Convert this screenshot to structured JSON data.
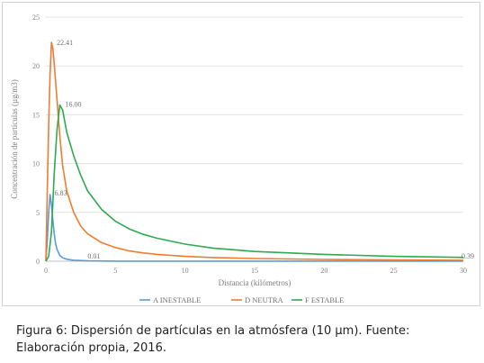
{
  "caption": {
    "line1": "Figura 6: Dispersión de partículas en la atmósfera (10 µm). Fuente:",
    "line2": "Elaboración propia, 2016."
  },
  "chart_data": {
    "type": "line",
    "title": "",
    "xlabel": "Distancia (kilómetros)",
    "ylabel": "Concentración de partículas (µg/m3)",
    "xlim": [
      0,
      30
    ],
    "ylim": [
      0,
      25
    ],
    "x_ticks": [
      "0",
      "5",
      "10",
      "15",
      "20",
      "25",
      "30"
    ],
    "y_ticks": [
      "0",
      "5",
      "10",
      "15",
      "20",
      "25"
    ],
    "grid": "horizontal",
    "legend_position": "bottom",
    "series": [
      {
        "name": "A INESTABLE",
        "color": "#5b9bd5",
        "x": [
          0,
          0.1,
          0.2,
          0.3,
          0.4,
          0.5,
          0.6,
          0.7,
          0.8,
          1.0,
          1.2,
          1.5,
          2,
          3,
          5,
          10,
          15,
          20,
          25,
          30
        ],
        "y": [
          0,
          2.0,
          5.0,
          6.83,
          5.8,
          4.2,
          2.8,
          1.8,
          1.2,
          0.6,
          0.35,
          0.2,
          0.1,
          0.04,
          0.01,
          0.01,
          0.01,
          0.01,
          0.01,
          0.01
        ]
      },
      {
        "name": "D NEUTRA",
        "color": "#ed7d31",
        "x": [
          0,
          0.1,
          0.2,
          0.3,
          0.4,
          0.5,
          0.6,
          0.8,
          1.0,
          1.2,
          1.5,
          2,
          2.5,
          3,
          4,
          5,
          6,
          7,
          8,
          10,
          12,
          15,
          20,
          25,
          30
        ],
        "y": [
          0,
          7,
          14,
          19,
          22.41,
          21.8,
          20.2,
          16.5,
          12.8,
          9.8,
          7.2,
          5.0,
          3.6,
          2.8,
          1.9,
          1.4,
          1.05,
          0.85,
          0.7,
          0.5,
          0.38,
          0.28,
          0.18,
          0.13,
          0.1
        ]
      },
      {
        "name": "F ESTABLE",
        "color": "#2eaa4f",
        "x": [
          0,
          0.2,
          0.4,
          0.6,
          0.8,
          1.0,
          1.2,
          1.5,
          2,
          2.5,
          3,
          4,
          5,
          6,
          7,
          8,
          10,
          12,
          15,
          20,
          25,
          30
        ],
        "y": [
          0,
          0.5,
          3.0,
          9.0,
          13.5,
          16.0,
          15.5,
          13.2,
          10.8,
          8.8,
          7.2,
          5.3,
          4.1,
          3.3,
          2.75,
          2.35,
          1.75,
          1.35,
          1.0,
          0.7,
          0.5,
          0.39
        ]
      }
    ],
    "annotations": [
      {
        "text": "22.41",
        "series": "D NEUTRA",
        "x": 0.4,
        "y": 22.41
      },
      {
        "text": "16.00",
        "series": "F ESTABLE",
        "x": 1.0,
        "y": 16.0
      },
      {
        "text": "6.83",
        "series": "A INESTABLE",
        "x": 0.3,
        "y": 6.83
      },
      {
        "text": "0.01",
        "series": "A INESTABLE",
        "x": 3.0,
        "y": 0.01
      },
      {
        "text": "0.39",
        "series": "F ESTABLE",
        "x": 30,
        "y": 0.39
      }
    ]
  }
}
